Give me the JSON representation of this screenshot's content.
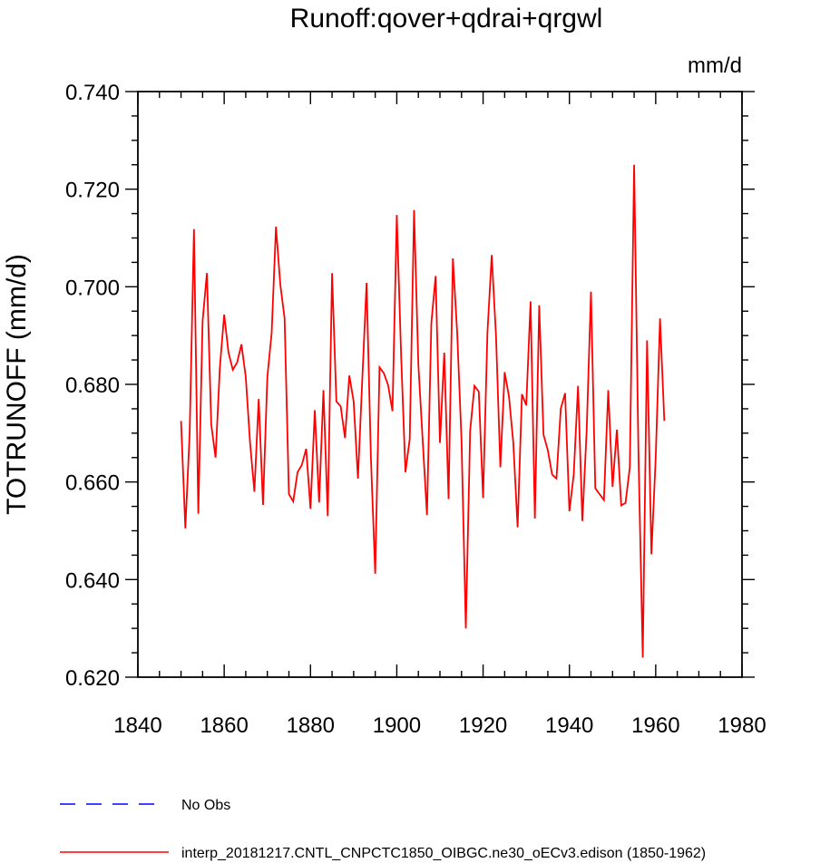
{
  "chart_data": {
    "type": "line",
    "title": "Runoff:qover+qdrai+qrgwl",
    "units": "mm/d",
    "ylabel": "TOTRUNOFF  (mm/d)",
    "xlabel": "",
    "xlim": [
      1840,
      1980
    ],
    "ylim": [
      0.62,
      0.74
    ],
    "x_ticks": [
      "1840",
      "1860",
      "1880",
      "1900",
      "1920",
      "1940",
      "1960",
      "1980"
    ],
    "y_ticks": [
      "0.620",
      "0.640",
      "0.660",
      "0.680",
      "0.700",
      "0.720",
      "0.740"
    ],
    "grid": false,
    "legend_position": "bottom-left",
    "series": [
      {
        "name": "No Obs",
        "color": "#0000ff",
        "dash": true,
        "x": [],
        "y": []
      },
      {
        "name": "interp_20181217.CNTL_CNPCTC1850_OIBGC.ne30_oECv3.edison (1850-1962)",
        "color": "#ff0000",
        "dash": false,
        "x": [
          1850,
          1851,
          1852,
          1853,
          1854,
          1855,
          1856,
          1857,
          1858,
          1859,
          1860,
          1861,
          1862,
          1863,
          1864,
          1865,
          1866,
          1867,
          1868,
          1869,
          1870,
          1871,
          1872,
          1873,
          1874,
          1875,
          1876,
          1877,
          1878,
          1879,
          1880,
          1881,
          1882,
          1883,
          1884,
          1885,
          1886,
          1887,
          1888,
          1889,
          1890,
          1891,
          1892,
          1893,
          1894,
          1895,
          1896,
          1897,
          1898,
          1899,
          1900,
          1901,
          1902,
          1903,
          1904,
          1905,
          1906,
          1907,
          1908,
          1909,
          1910,
          1911,
          1912,
          1913,
          1914,
          1915,
          1916,
          1917,
          1918,
          1919,
          1920,
          1921,
          1922,
          1923,
          1924,
          1925,
          1926,
          1927,
          1928,
          1929,
          1930,
          1931,
          1932,
          1933,
          1934,
          1935,
          1936,
          1937,
          1938,
          1939,
          1940,
          1941,
          1942,
          1943,
          1944,
          1945,
          1946,
          1947,
          1948,
          1949,
          1950,
          1951,
          1952,
          1953,
          1954,
          1955,
          1956,
          1957,
          1958,
          1959,
          1960,
          1961,
          1962
        ],
        "y": [
          0.6725,
          0.6505,
          0.67,
          0.7118,
          0.6535,
          0.693,
          0.7028,
          0.6718,
          0.665,
          0.6835,
          0.6943,
          0.6865,
          0.683,
          0.6845,
          0.6882,
          0.6815,
          0.668,
          0.658,
          0.677,
          0.6553,
          0.6815,
          0.6905,
          0.7123,
          0.7005,
          0.6935,
          0.6575,
          0.656,
          0.662,
          0.6635,
          0.6668,
          0.6545,
          0.6747,
          0.6558,
          0.6788,
          0.653,
          0.7028,
          0.6765,
          0.6755,
          0.669,
          0.6818,
          0.6765,
          0.6607,
          0.681,
          0.7008,
          0.665,
          0.6412,
          0.6835,
          0.6823,
          0.6798,
          0.6745,
          0.7147,
          0.686,
          0.662,
          0.6688,
          0.7157,
          0.684,
          0.6685,
          0.6532,
          0.6925,
          0.7022,
          0.668,
          0.6865,
          0.6565,
          0.7058,
          0.6905,
          0.6685,
          0.63,
          0.6705,
          0.6797,
          0.6785,
          0.6567,
          0.6905,
          0.7065,
          0.6898,
          0.663,
          0.6825,
          0.6775,
          0.668,
          0.6507,
          0.678,
          0.6757,
          0.697,
          0.6525,
          0.6962,
          0.6697,
          0.6665,
          0.6615,
          0.6607,
          0.675,
          0.6782,
          0.654,
          0.6615,
          0.6797,
          0.652,
          0.6705,
          0.699,
          0.6587,
          0.6575,
          0.6563,
          0.6788,
          0.659,
          0.6707,
          0.6552,
          0.6557,
          0.663,
          0.725,
          0.666,
          0.624,
          0.689,
          0.6452,
          0.665,
          0.6935,
          0.6725
        ]
      }
    ]
  }
}
